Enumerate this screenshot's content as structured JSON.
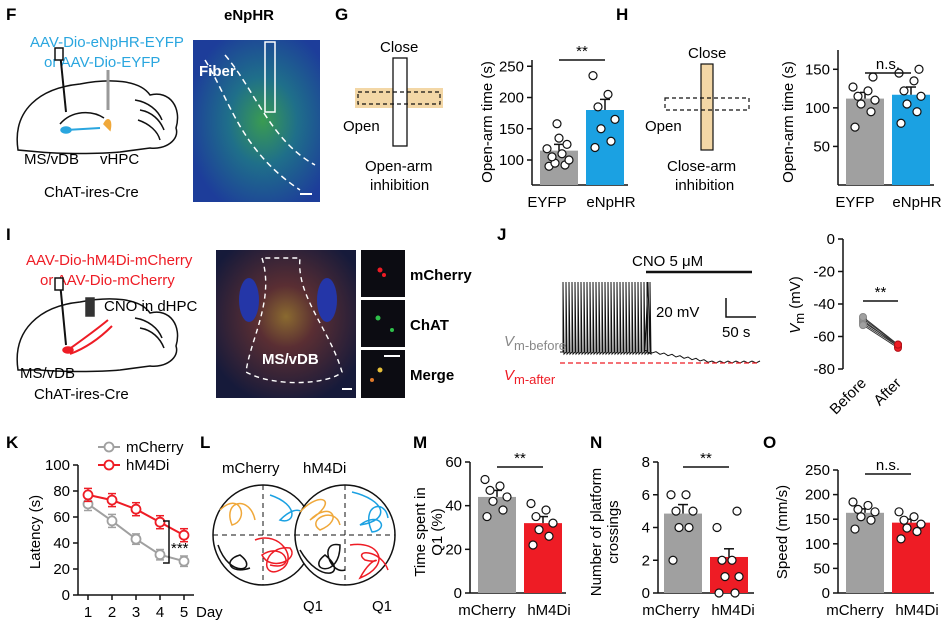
{
  "colors": {
    "gray": "#a0a0a0",
    "blue": "#1ba1e2",
    "red": "#ee1c25",
    "orange": "#f0a83a",
    "tan": "#f3d7a6",
    "cyan": "#2aa6df",
    "black": "#111111"
  },
  "panels": {
    "F": "F",
    "G": "G",
    "H": "H",
    "I": "I",
    "J": "J",
    "K": "K",
    "L": "L",
    "M": "M",
    "N": "N",
    "O": "O"
  },
  "panelF": {
    "virus_line1": "AAV-Dio-eNpHR-EYFP",
    "virus_line2": "or AAV-Dio-EYFP",
    "region1": "MS/vDB",
    "region2": "vHPC",
    "mouse_line": "ChAT-ires-Cre",
    "image_title": "eNpHR",
    "fiber_label": "Fiber"
  },
  "panelG": {
    "close": "Close",
    "open": "Open",
    "caption1": "Open-arm",
    "caption2": "inhibition"
  },
  "panelH": {
    "close": "Close",
    "open": "Open",
    "caption1": "Close-arm",
    "caption2": "inhibition"
  },
  "panelI": {
    "virus_line1": "AAV-Dio-hM4Di-mCherry",
    "virus_line2": "or AAV-Dio-mCherry",
    "cno": "CNO in dHPC",
    "region": "MS/vDB",
    "mouse_line": "ChAT-ires-Cre",
    "image_region": "MS/vDB",
    "inset1": "mCherry",
    "inset2": "ChAT",
    "inset3": "Merge"
  },
  "panelJ": {
    "drug": "CNO 5 μM",
    "scale_v": "20 mV",
    "scale_t": "50 s",
    "vm_before": "V",
    "vm_before_sub": "m-before",
    "vm_after": "V",
    "vm_after_sub": "m-after"
  },
  "panelL": {
    "group1": "mCherry",
    "group2": "hM4Di",
    "quadrant": "Q1",
    "quadrant2": "Q1"
  },
  "chart_data": [
    {
      "id": "G",
      "type": "bar",
      "categories": [
        "EYFP",
        "eNpHR"
      ],
      "values": [
        115,
        180
      ],
      "colors": [
        "#a0a0a0",
        "#1ba1e2"
      ],
      "errors": [
        10,
        17
      ],
      "points": [
        [
          90,
          92,
          95,
          100,
          105,
          110,
          118,
          125,
          135,
          158
        ],
        [
          120,
          130,
          150,
          165,
          185,
          205,
          235
        ]
      ],
      "ylabel": "Open-arm time (s)",
      "yticks": [
        100,
        150,
        200,
        250
      ],
      "ylim": [
        60,
        260
      ],
      "significance": "**"
    },
    {
      "id": "H",
      "type": "bar",
      "categories": [
        "EYFP",
        "eNpHR"
      ],
      "values": [
        112,
        117
      ],
      "colors": [
        "#a0a0a0",
        "#1ba1e2"
      ],
      "errors": [
        8,
        10
      ],
      "points": [
        [
          75,
          95,
          105,
          110,
          115,
          122,
          127,
          140
        ],
        [
          80,
          95,
          105,
          115,
          122,
          135,
          145,
          150
        ]
      ],
      "ylabel": "Open-arm time (s)",
      "yticks": [
        50,
        100,
        150
      ],
      "ylim": [
        0,
        175
      ],
      "significance": "n.s."
    },
    {
      "id": "J",
      "type": "scatter",
      "categories": [
        "Before",
        "After"
      ],
      "series": [
        {
          "values": [
            -51,
            -65
          ]
        },
        {
          "values": [
            -50,
            -66
          ]
        },
        {
          "values": [
            -52,
            -66
          ]
        },
        {
          "values": [
            -49,
            -65
          ]
        },
        {
          "values": [
            -53,
            -67
          ]
        },
        {
          "values": [
            -48,
            -65
          ]
        }
      ],
      "ylabel": "V",
      "ylabel_sub": "m",
      "ylabel_unit": " (mV)",
      "yticks": [
        -80,
        -60,
        -40,
        -20,
        0
      ],
      "ylim": [
        -80,
        0
      ],
      "significance": "**"
    },
    {
      "id": "K",
      "type": "line",
      "x": [
        1,
        2,
        3,
        4,
        5
      ],
      "xticks": [
        "1",
        "2",
        "3",
        "4",
        "5"
      ],
      "xunit": "Day",
      "series": [
        {
          "name": "mCherry",
          "values": [
            70,
            57,
            43,
            31,
            26
          ],
          "errors": [
            5,
            5,
            4,
            4,
            4
          ],
          "color": "#a0a0a0"
        },
        {
          "name": "hM4Di",
          "values": [
            77,
            73,
            66,
            56,
            46
          ],
          "errors": [
            5,
            5,
            5,
            5,
            5
          ],
          "color": "#ee1c25"
        }
      ],
      "ylabel": "Latency (s)",
      "yticks": [
        0,
        20,
        40,
        60,
        80,
        100
      ],
      "ylim": [
        0,
        100
      ],
      "significance": "***"
    },
    {
      "id": "M",
      "type": "bar",
      "categories": [
        "mCherry",
        "hM4Di"
      ],
      "values": [
        44,
        32
      ],
      "colors": [
        "#a0a0a0",
        "#ee1c25"
      ],
      "errors": [
        3,
        3
      ],
      "points": [
        [
          35,
          38,
          42,
          44,
          47,
          49,
          52
        ],
        [
          22,
          26,
          29,
          32,
          35,
          38,
          41
        ]
      ],
      "ylabel": "Time spent in Q1 (%)",
      "ylabel1": "Time spent in",
      "ylabel2": "Q1 (%)",
      "yticks": [
        0,
        20,
        40,
        60
      ],
      "ylim": [
        0,
        60
      ],
      "significance": "**"
    },
    {
      "id": "N",
      "type": "bar",
      "categories": [
        "mCherry",
        "hM4Di"
      ],
      "values": [
        4.85,
        2.2
      ],
      "colors": [
        "#a0a0a0",
        "#ee1c25"
      ],
      "errors": [
        0.55,
        0.5
      ],
      "points": [
        [
          2,
          4,
          4,
          5,
          5,
          6,
          6
        ],
        [
          0,
          0,
          1,
          1,
          2,
          2,
          4,
          5
        ]
      ],
      "ylabel": "Number of platform crossings",
      "ylabel1": "Number of platform",
      "ylabel2": "crossings",
      "yticks": [
        0,
        2,
        4,
        6,
        8
      ],
      "ylim": [
        0,
        8
      ],
      "significance": "**"
    },
    {
      "id": "O",
      "type": "bar",
      "categories": [
        "mCherry",
        "hM4Di"
      ],
      "values": [
        163,
        143
      ],
      "colors": [
        "#a0a0a0",
        "#ee1c25"
      ],
      "errors": [
        8,
        7
      ],
      "points": [
        [
          130,
          148,
          155,
          165,
          170,
          178,
          185
        ],
        [
          110,
          125,
          132,
          140,
          148,
          155,
          165
        ]
      ],
      "ylabel": "Speed (mm/s)",
      "yticks": [
        0,
        50,
        100,
        150,
        200,
        250
      ],
      "ylim": [
        0,
        250
      ],
      "significance": "n.s."
    }
  ]
}
